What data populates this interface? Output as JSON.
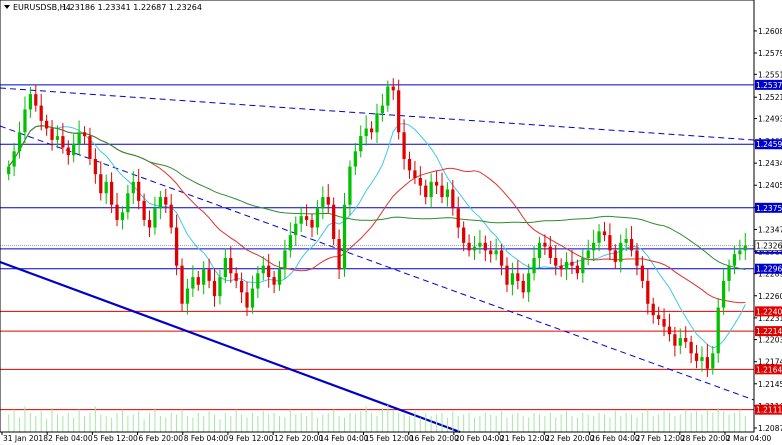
{
  "header": {
    "symbol": "EURUSDSB,H4",
    "ohlc": "1.23186 1.23341 1.22687 1.23264"
  },
  "chart_data": {
    "type": "candlestick",
    "title": "EURUSDSB,H4",
    "ylim": [
      1.2087,
      1.2621
    ],
    "y_ticks": [
      "1.26080",
      "1.25790",
      "1.25510",
      "1.25210",
      "1.24930",
      "1.24635",
      "1.24345",
      "1.24055",
      "1.23765",
      "1.23475",
      "1.23185",
      "1.22895",
      "1.22605",
      "1.22315",
      "1.22030",
      "1.21740",
      "1.21450",
      "1.21160",
      "1.20870"
    ],
    "x_ticks": [
      "31 Jan 2018",
      "2 Feb 04:00",
      "5 Feb 12:00",
      "6 Feb 20:00",
      "8 Feb 04:00",
      "9 Feb 12:00",
      "12 Feb 20:00",
      "14 Feb 04:00",
      "15 Feb 12:00",
      "16 Feb 20:00",
      "20 Feb 04:00",
      "21 Feb 12:00",
      "22 Feb 20:00",
      "26 Feb 04:00",
      "27 Feb 12:00",
      "28 Feb 20:00",
      "2 Mar 04:00"
    ],
    "levels": [
      {
        "value": 1.25372,
        "label": "1.25372",
        "color": "#0000cc"
      },
      {
        "value": 1.24593,
        "label": "1.24593",
        "color": "#0000cc"
      },
      {
        "value": 1.23759,
        "label": "1.23759",
        "color": "#0000cc"
      },
      {
        "value": 1.23221,
        "label": "1.23221",
        "color": "#0000cc"
      },
      {
        "value": 1.2296,
        "label": "1.22960",
        "color": "#0000cc"
      },
      {
        "value": 1.224,
        "label": "1.22400",
        "color": "#e00000"
      },
      {
        "value": 1.22141,
        "label": "1.22141",
        "color": "#e00000"
      },
      {
        "value": 1.2164,
        "label": "1.21640",
        "color": "#e00000"
      },
      {
        "value": 1.21111,
        "label": "1.21111",
        "color": "#e00000"
      }
    ],
    "current_price": {
      "value": 1.23264,
      "label": "1.23264"
    },
    "colors": {
      "bull": "#00c000",
      "bear": "#e00000",
      "ma_fast": "#40c8e8",
      "ma_mid": "#e03030",
      "ma_slow": "#2e8b2e",
      "level_blue": "#0000cc",
      "level_red": "#e00000",
      "trend": "#0000cc"
    },
    "closes": [
      1.243,
      1.245,
      1.2475,
      1.2505,
      1.2525,
      1.251,
      1.249,
      1.248,
      1.2465,
      1.247,
      1.2455,
      1.2445,
      1.246,
      1.2475,
      1.247,
      1.244,
      1.242,
      1.2395,
      1.241,
      1.238,
      1.236,
      1.237,
      1.2395,
      1.241,
      1.2385,
      1.236,
      1.235,
      1.2375,
      1.239,
      1.238,
      1.235,
      1.23,
      1.225,
      1.227,
      1.2285,
      1.2275,
      1.2295,
      1.228,
      1.226,
      1.2285,
      1.231,
      1.229,
      1.228,
      1.2265,
      1.2245,
      1.227,
      1.229,
      1.23,
      1.2285,
      1.2275,
      1.2295,
      1.232,
      1.234,
      1.2355,
      1.2365,
      1.236,
      1.235,
      1.2375,
      1.239,
      1.238,
      1.2335,
      1.2295,
      1.238,
      1.243,
      1.245,
      1.247,
      1.248,
      1.2475,
      1.25,
      1.251,
      1.2535,
      1.253,
      1.2475,
      1.244,
      1.2425,
      1.2415,
      1.2405,
      1.239,
      1.241,
      1.2405,
      1.239,
      1.24,
      1.2375,
      1.235,
      1.233,
      1.232,
      1.2325,
      1.233,
      1.232,
      1.2315,
      1.232,
      1.23,
      1.2275,
      1.229,
      1.228,
      1.2265,
      1.229,
      1.231,
      1.233,
      1.2325,
      1.231,
      1.23,
      1.2295,
      1.2305,
      1.23,
      1.229,
      1.231,
      1.232,
      1.233,
      1.2345,
      1.234,
      1.232,
      1.2305,
      1.233,
      1.2335,
      1.232,
      1.23,
      1.228,
      1.225,
      1.2235,
      1.223,
      1.222,
      1.221,
      1.2195,
      1.2205,
      1.22,
      1.2185,
      1.2175,
      1.218,
      1.2165,
      1.2185,
      1.2245,
      1.228,
      1.23,
      1.2315,
      1.232,
      1.2326
    ],
    "volume_levels": [
      0.55,
      0.7,
      0.45,
      0.8,
      0.6,
      0.5,
      0.65,
      0.4,
      0.75,
      0.55,
      0.5,
      0.6,
      0.45,
      0.7,
      0.5,
      0.6,
      0.8,
      0.55,
      0.5,
      0.45,
      0.6,
      0.7,
      0.5,
      0.55,
      0.65,
      0.4,
      0.6,
      0.75,
      0.5,
      0.45,
      0.6,
      0.55,
      0.7,
      0.5,
      0.45,
      0.6,
      0.5,
      0.65,
      0.55,
      0.4,
      0.6,
      0.5,
      0.7,
      0.55,
      0.45,
      0.6,
      0.5,
      0.65,
      0.55,
      0.6,
      0.5,
      0.45,
      0.7,
      0.55,
      0.6,
      0.5,
      0.65,
      0.45,
      0.55,
      0.6,
      0.7,
      0.5,
      0.45,
      0.6,
      0.55,
      0.65,
      0.8,
      0.6,
      0.5,
      0.75,
      0.85,
      0.7,
      0.6,
      0.55,
      0.5,
      0.65,
      0.45,
      0.6,
      0.5,
      0.55,
      0.6,
      0.45,
      0.65,
      0.5,
      0.55,
      0.6,
      0.45,
      0.5,
      0.6,
      0.55,
      0.5,
      0.65,
      0.45,
      0.55,
      0.6,
      0.5,
      0.45,
      0.6,
      0.55,
      0.5,
      0.6,
      0.45,
      0.55,
      0.65,
      0.5,
      0.45,
      0.6,
      0.55,
      0.5,
      0.6,
      0.55,
      0.45,
      0.65,
      0.5,
      0.6,
      0.55,
      0.45,
      0.6,
      0.7,
      0.5,
      0.55,
      0.65,
      0.6,
      0.5,
      0.55,
      0.7,
      0.6,
      0.65,
      0.55,
      0.7,
      0.6,
      0.75,
      0.65,
      0.55,
      0.6,
      0.7,
      0.5
    ]
  }
}
